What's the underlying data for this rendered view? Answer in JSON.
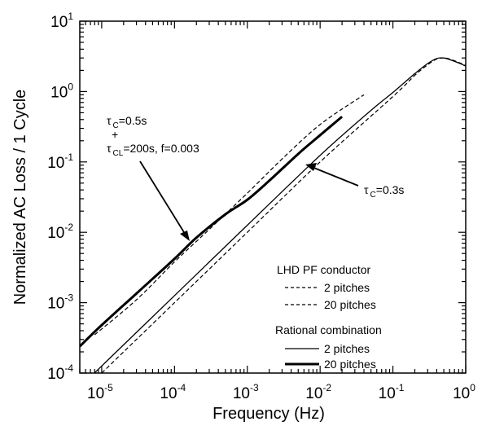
{
  "chart_data": {
    "type": "line",
    "xlabel": "Frequency (Hz)",
    "ylabel": "Normalized AC Loss / 1 Cycle",
    "xscale": "log",
    "yscale": "log",
    "xlim": [
      5e-06,
      1
    ],
    "ylim": [
      0.0001,
      10
    ],
    "x_ticks": [
      {
        "base": "10",
        "exp": "-5",
        "value": 1e-05
      },
      {
        "base": "10",
        "exp": "-4",
        "value": 0.0001
      },
      {
        "base": "10",
        "exp": "-3",
        "value": 0.001
      },
      {
        "base": "10",
        "exp": "-2",
        "value": 0.01
      },
      {
        "base": "10",
        "exp": "-1",
        "value": 0.1
      },
      {
        "base": "10",
        "exp": "0",
        "value": 1
      }
    ],
    "y_ticks": [
      {
        "base": "10",
        "exp": "-4",
        "value": 0.0001
      },
      {
        "base": "10",
        "exp": "-3",
        "value": 0.001
      },
      {
        "base": "10",
        "exp": "-2",
        "value": 0.01
      },
      {
        "base": "10",
        "exp": "-1",
        "value": 0.1
      },
      {
        "base": "10",
        "exp": "0",
        "value": 1
      },
      {
        "base": "10",
        "exp": "1",
        "value": 10
      }
    ],
    "grid": false,
    "legend_position": "bottom-right",
    "legend": {
      "group1_title": "LHD PF conductor",
      "group2_title": "Rational combination",
      "entries": [
        {
          "label": "2  pitches",
          "group": 1,
          "style": "dashed-thin"
        },
        {
          "label": "20 pitches",
          "group": 1,
          "style": "dashed-thin"
        },
        {
          "label": "2 pitches",
          "group": 2,
          "style": "solid-thin"
        },
        {
          "label": "20 pitches",
          "group": 2,
          "style": "solid-thick"
        }
      ]
    },
    "annotations": {
      "a1_tau": "τ",
      "a1_sub": "C",
      "a1_rest": "=0.5s",
      "plus": "+",
      "a2_tau": "τ",
      "a2_sub": "CL",
      "a2_rest": "=200s, f=0.003",
      "a3_tau": "τ",
      "a3_sub": "C",
      "a3_rest": "=0.3s"
    },
    "series": [
      {
        "style": "solid-thin",
        "points": [
          [
            8e-06,
            0.0001
          ],
          [
            1e-05,
            0.000126
          ],
          [
            0.0001,
            0.00126
          ],
          [
            0.001,
            0.0126
          ],
          [
            0.01,
            0.124
          ],
          [
            0.05,
            0.54
          ],
          [
            0.1,
            0.97
          ],
          [
            0.2,
            1.8
          ],
          [
            0.3,
            2.5
          ],
          [
            0.4,
            2.95
          ],
          [
            0.5,
            3.0
          ],
          [
            0.6,
            2.85
          ],
          [
            0.8,
            2.55
          ],
          [
            1.0,
            2.3
          ]
        ]
      },
      {
        "style": "solid-thick",
        "points": [
          [
            5e-06,
            0.00024
          ],
          [
            1e-05,
            0.00048
          ],
          [
            3e-05,
            0.00135
          ],
          [
            0.0001,
            0.0042
          ],
          [
            0.0002,
            0.0084
          ],
          [
            0.0005,
            0.018
          ],
          [
            0.001,
            0.029
          ],
          [
            0.002,
            0.054
          ],
          [
            0.005,
            0.13
          ],
          [
            0.01,
            0.24
          ],
          [
            0.02,
            0.44
          ]
        ]
      },
      {
        "style": "dashed-thin",
        "points": [
          [
            1e-05,
            0.0001
          ],
          [
            0.0001,
            0.001
          ],
          [
            0.001,
            0.01
          ],
          [
            0.01,
            0.1
          ],
          [
            0.1,
            0.85
          ],
          [
            0.2,
            1.7
          ],
          [
            0.3,
            2.4
          ],
          [
            0.4,
            2.9
          ],
          [
            0.5,
            3.0
          ],
          [
            0.6,
            2.9
          ],
          [
            0.8,
            2.6
          ],
          [
            1.0,
            2.35
          ]
        ]
      },
      {
        "style": "dashed-thin",
        "points": [
          [
            8e-06,
            0.00035
          ],
          [
            3e-05,
            0.0011
          ],
          [
            0.0001,
            0.0038
          ],
          [
            0.0003,
            0.011
          ],
          [
            0.001,
            0.036
          ],
          [
            0.003,
            0.11
          ],
          [
            0.01,
            0.34
          ],
          [
            0.04,
            0.9
          ]
        ]
      }
    ]
  }
}
